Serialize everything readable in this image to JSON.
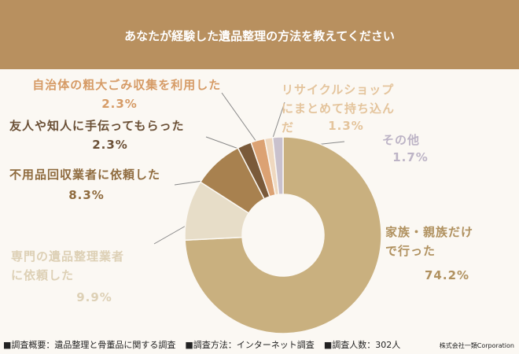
{
  "chart_data": {
    "type": "donut",
    "title": "あなたが経験した遺品整理の方法を教えてください",
    "categories": [
      "家族・親族だけで行った",
      "専門の遺品整理業者に依頼した",
      "不用品回収業者に依頼した",
      "友人や知人に手伝ってもらった",
      "自治体の粗大ごみ収集を利用した",
      "リサイクルショップにまとめて持ち込んだ",
      "その他"
    ],
    "values": [
      74.2,
      9.9,
      8.3,
      2.3,
      2.3,
      1.3,
      1.7
    ],
    "value_labels": [
      "74.2%",
      "9.9%",
      "8.3%",
      "2.3%",
      "2.3%",
      "1.3%",
      "1.7%"
    ],
    "colors": [
      "#c9b07f",
      "#e7ddc8",
      "#a8814f",
      "#7a5a3a",
      "#dca273",
      "#efd8bf",
      "#c9c1cd"
    ],
    "label_colors": [
      "#b0915f",
      "#ddd0b5",
      "#8f6b3e",
      "#6b5036",
      "#d69b66",
      "#e4c49c",
      "#bdb4c6"
    ],
    "footnotes": [
      "■調査概要：遺品整理と骨董品に関する調査",
      "■調査方法：インターネット調査",
      "■調査人数：302人"
    ],
    "credit": "株式会社一類Corporation"
  }
}
